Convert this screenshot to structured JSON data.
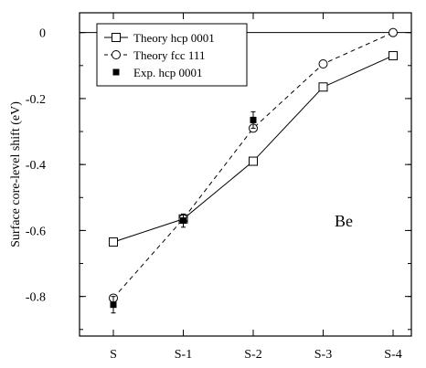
{
  "chart_data": {
    "type": "line",
    "categories": [
      "S",
      "S-1",
      "S-2",
      "S-3",
      "S-4"
    ],
    "ylabel": "Surface core-level shift  (eV)",
    "ylim": [
      -0.92,
      0.06
    ],
    "yticks": [
      0,
      -0.2,
      -0.4,
      -0.6,
      -0.8
    ],
    "ytick_labels": [
      "0",
      "-0.2",
      "-0.4",
      "-0.6",
      "-0.8"
    ],
    "reference_line": 0,
    "annotation": "Be",
    "legend_position": "top-left",
    "series": [
      {
        "name": "Theory  hcp 0001",
        "style": "solid",
        "marker": "open-square",
        "values": [
          -0.635,
          -0.565,
          -0.39,
          -0.165,
          -0.07
        ]
      },
      {
        "name": "Theory  fcc 111",
        "style": "dashed",
        "marker": "open-circle",
        "values": [
          -0.805,
          -0.565,
          -0.29,
          -0.095,
          0.0
        ]
      },
      {
        "name": "Exp.  hcp 0001",
        "style": "none",
        "marker": "filled-square",
        "values": [
          -0.825,
          -0.57,
          -0.265,
          null,
          null
        ],
        "errors": [
          0.025,
          0.02,
          0.025,
          null,
          null
        ]
      }
    ]
  }
}
